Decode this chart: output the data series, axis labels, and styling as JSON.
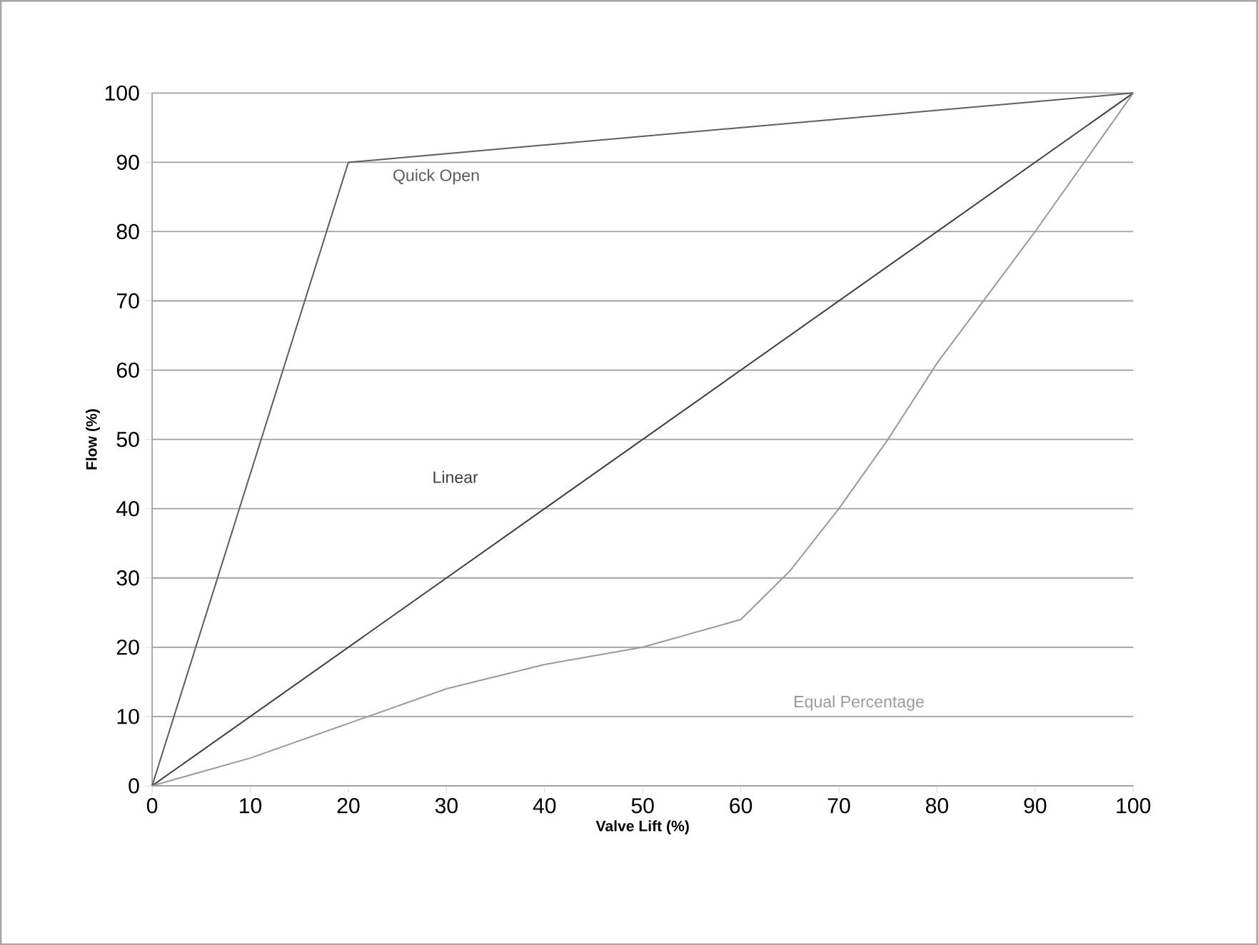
{
  "chart_data": {
    "type": "line",
    "xlabel": "Valve Lift (%)",
    "ylabel": "Flow (%)",
    "xlim": [
      0,
      100
    ],
    "ylim": [
      0,
      100
    ],
    "xticks": [
      0,
      10,
      20,
      30,
      40,
      50,
      60,
      70,
      80,
      90,
      100
    ],
    "yticks": [
      0,
      10,
      20,
      30,
      40,
      50,
      60,
      70,
      80,
      90,
      100
    ],
    "grid": "y",
    "marker": "none",
    "line_style": "solid",
    "series": [
      {
        "name": "Quick Open",
        "color": "#5e5e5e",
        "x": [
          0,
          20,
          100
        ],
        "values": [
          0,
          90,
          100
        ]
      },
      {
        "name": "Linear",
        "color": "#3f3f3f",
        "x": [
          0,
          40,
          100
        ],
        "values": [
          0,
          40,
          100
        ]
      },
      {
        "name": "Equal Percentage",
        "color": "#9a9a9a",
        "x": [
          0,
          10,
          20,
          30,
          40,
          50,
          60,
          65,
          70,
          75,
          80,
          90,
          100
        ],
        "values": [
          0,
          4,
          9,
          14,
          17.5,
          20,
          24,
          31,
          40,
          50,
          61,
          80,
          100
        ]
      }
    ]
  }
}
